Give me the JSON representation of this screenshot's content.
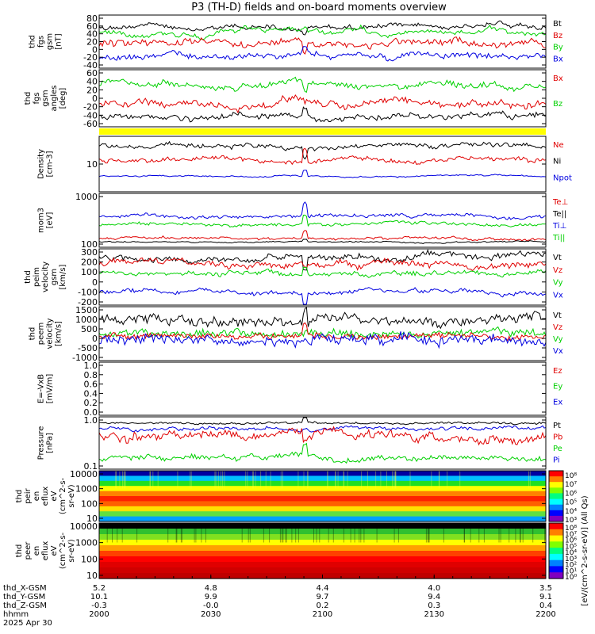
{
  "title": "P3 (TH-D) fields and on-board moments overview",
  "colors": {
    "black": "#000000",
    "red": "#e00000",
    "green": "#00d000",
    "blue": "#0000e0",
    "yellow": "#ffff00"
  },
  "chart_data": [
    {
      "type": "line",
      "name": "thd_fgs_gsm_mag",
      "ylabel_lines": [
        "thd",
        "fgs",
        "gsm",
        "[nT]"
      ],
      "yticks": [
        "80",
        "60",
        "40",
        "20",
        "0",
        "-20",
        "-40"
      ],
      "ylim": [
        -50,
        85
      ],
      "legend": [
        {
          "name": "Bt",
          "color": "black"
        },
        {
          "name": "Bz",
          "color": "red"
        },
        {
          "name": "By",
          "color": "green"
        },
        {
          "name": "Bx",
          "color": "blue"
        }
      ]
    },
    {
      "type": "line",
      "name": "thd_fgs_gsm_angles",
      "ylabel_lines": [
        "thd",
        "fgs",
        "gsm",
        "angles",
        "[deg]"
      ],
      "yticks": [
        "60",
        "40",
        "20",
        "0",
        "-20",
        "-40",
        "-60"
      ],
      "ylim": [
        -70,
        75
      ],
      "legend": [
        {
          "name": "Bx",
          "color": "red"
        },
        {
          "name": "Bz",
          "color": "green"
        }
      ]
    },
    {
      "type": "line",
      "name": "thd_density",
      "ylabel_lines": [
        "Density",
        "[cm-3]"
      ],
      "yticks": [
        "10"
      ],
      "scale": "log",
      "legend": [
        {
          "name": "Ne",
          "color": "red"
        },
        {
          "name": "Ni",
          "color": "black"
        },
        {
          "name": "Npot",
          "color": "blue"
        }
      ]
    },
    {
      "type": "line",
      "name": "thd_temperature",
      "ylabel_lines": [
        "mom3",
        "[eV]"
      ],
      "yticks": [
        "1000",
        "100"
      ],
      "scale": "log",
      "legend": [
        {
          "name": "Te⊥",
          "color": "red"
        },
        {
          "name": "Te||",
          "color": "black"
        },
        {
          "name": "Ti⊥",
          "color": "blue"
        },
        {
          "name": "Ti||",
          "color": "green"
        }
      ]
    },
    {
      "type": "line",
      "name": "thd_peim_velocity",
      "ylabel_lines": [
        "thd",
        "peim",
        "velocity",
        "gsm",
        "[km/s]"
      ],
      "yticks": [
        "300",
        "200",
        "100",
        "0",
        "-100",
        "-200"
      ],
      "ylim": [
        -220,
        330
      ],
      "legend": [
        {
          "name": "Vt",
          "color": "black"
        },
        {
          "name": "Vz",
          "color": "red"
        },
        {
          "name": "Vy",
          "color": "green"
        },
        {
          "name": "Vx",
          "color": "blue"
        }
      ]
    },
    {
      "type": "line",
      "name": "thd_peem_velocity",
      "ylabel_lines": [
        "thd",
        "peem",
        "velocity",
        "[km/s]"
      ],
      "yticks": [
        "1500",
        "1000",
        "500",
        "0",
        "-500",
        "-1000"
      ],
      "ylim": [
        -1100,
        1600
      ],
      "legend": [
        {
          "name": "Vt",
          "color": "black"
        },
        {
          "name": "Vz",
          "color": "red"
        },
        {
          "name": "Vy",
          "color": "green"
        },
        {
          "name": "Vx",
          "color": "blue"
        }
      ]
    },
    {
      "type": "line",
      "name": "thd_efield",
      "ylabel_lines": [
        "E=-VxB",
        "[mV/m]"
      ],
      "yticks": [
        "1.0",
        "0.8",
        "0.6",
        "0.4",
        "0.2",
        "0.0"
      ],
      "ylim": [
        -0.05,
        1.0
      ],
      "legend": [
        {
          "name": "Ez",
          "color": "red"
        },
        {
          "name": "Ey",
          "color": "green"
        },
        {
          "name": "Ex",
          "color": "blue"
        }
      ]
    },
    {
      "type": "line",
      "name": "thd_pressure",
      "ylabel_lines": [
        "Pressure",
        "[nPa]"
      ],
      "yticks": [
        "1.0",
        "0.1"
      ],
      "scale": "log",
      "legend": [
        {
          "name": "Pt",
          "color": "black"
        },
        {
          "name": "Pb",
          "color": "red"
        },
        {
          "name": "Pe",
          "color": "green"
        },
        {
          "name": "Pi",
          "color": "blue"
        }
      ]
    },
    {
      "type": "heatmap",
      "name": "thd_peir_en_eflux",
      "ylabel_lines": [
        "thd",
        "peir",
        "en",
        "eflux",
        "eV",
        "(cm^2-s-",
        "sr-eV)"
      ],
      "yticks": [
        "10000",
        "1000",
        "100",
        "10"
      ],
      "scale": "log",
      "colorbar_ticks": [
        "10⁸",
        "10⁷",
        "10⁶",
        "10⁵",
        "10⁴",
        "10³"
      ]
    },
    {
      "type": "heatmap",
      "name": "thd_peer_en_eflux",
      "ylabel_lines": [
        "thd",
        "peer",
        "en",
        "eflux",
        "eV",
        "(cm^2-s-",
        "sr-eV)"
      ],
      "yticks": [
        "10000",
        "1000",
        "100",
        "10"
      ],
      "scale": "log",
      "colorbar_ticks": [
        "10⁸",
        "10⁷",
        "10⁶",
        "10⁵",
        "10⁴",
        "10³",
        "10²",
        "10¹",
        "10⁰"
      ]
    }
  ],
  "colorbar_label": "[eV/(cm^2-s-sr-eV)] (All Qs)",
  "x_axis": {
    "rows": [
      {
        "label": "thd_X-GSM",
        "values": [
          "5.2",
          "4.8",
          "4.4",
          "4.0",
          "3.5"
        ]
      },
      {
        "label": "thd_Y-GSM",
        "values": [
          "10.1",
          "9.9",
          "9.7",
          "9.4",
          "9.1"
        ]
      },
      {
        "label": "thd_Z-GSM",
        "values": [
          "-0.3",
          "-0.0",
          "0.2",
          "0.3",
          "0.4"
        ]
      },
      {
        "label": "hhmm",
        "values": [
          "2000",
          "2030",
          "2100",
          "2130",
          "2200"
        ]
      }
    ],
    "date": "2025 Apr 30"
  }
}
